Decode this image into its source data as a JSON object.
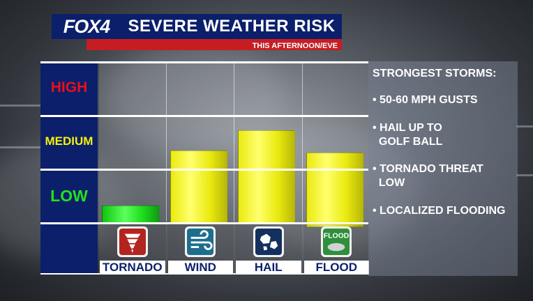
{
  "header": {
    "logo": "FOX4",
    "title": "SEVERE WEATHER RISK",
    "subtitle": "THIS AFTERNOON/EVE"
  },
  "risk_levels": [
    {
      "label": "HIGH",
      "color": "#e8101b"
    },
    {
      "label": "MEDIUM",
      "color": "#f2f20b"
    },
    {
      "label": "LOW",
      "color": "#22e11e"
    }
  ],
  "chart_data": {
    "type": "bar",
    "categories": [
      "TORNADO",
      "WIND",
      "HAIL",
      "FLOOD"
    ],
    "values": [
      0.34,
      1.37,
      1.74,
      1.33
    ],
    "scale": "0 = bottom of LOW, 1 = LOW/MEDIUM boundary, 2 = MEDIUM/HIGH boundary, 3 = top of HIGH",
    "ylim": [
      0,
      3
    ],
    "bar_colors": [
      "#1fe01f",
      "#eaea10",
      "#eaea10",
      "#eaea10"
    ],
    "icons": [
      "tornado-icon",
      "wind-icon",
      "hail-icon",
      "flood-icon"
    ],
    "icon_colors": [
      "#b3241f",
      "#1d6e8c",
      "#14305e",
      "#2f8f3a"
    ]
  },
  "panel": {
    "heading": "STRONGEST STORMS:",
    "items": [
      [
        "• 50-60 MPH GUSTS"
      ],
      [
        "• HAIL UP TO",
        "  GOLF BALL"
      ],
      [
        "• TORNADO THREAT",
        "  LOW"
      ],
      [
        "• LOCALIZED FLOODING"
      ]
    ]
  },
  "flood_icon_text": "FLOOD"
}
